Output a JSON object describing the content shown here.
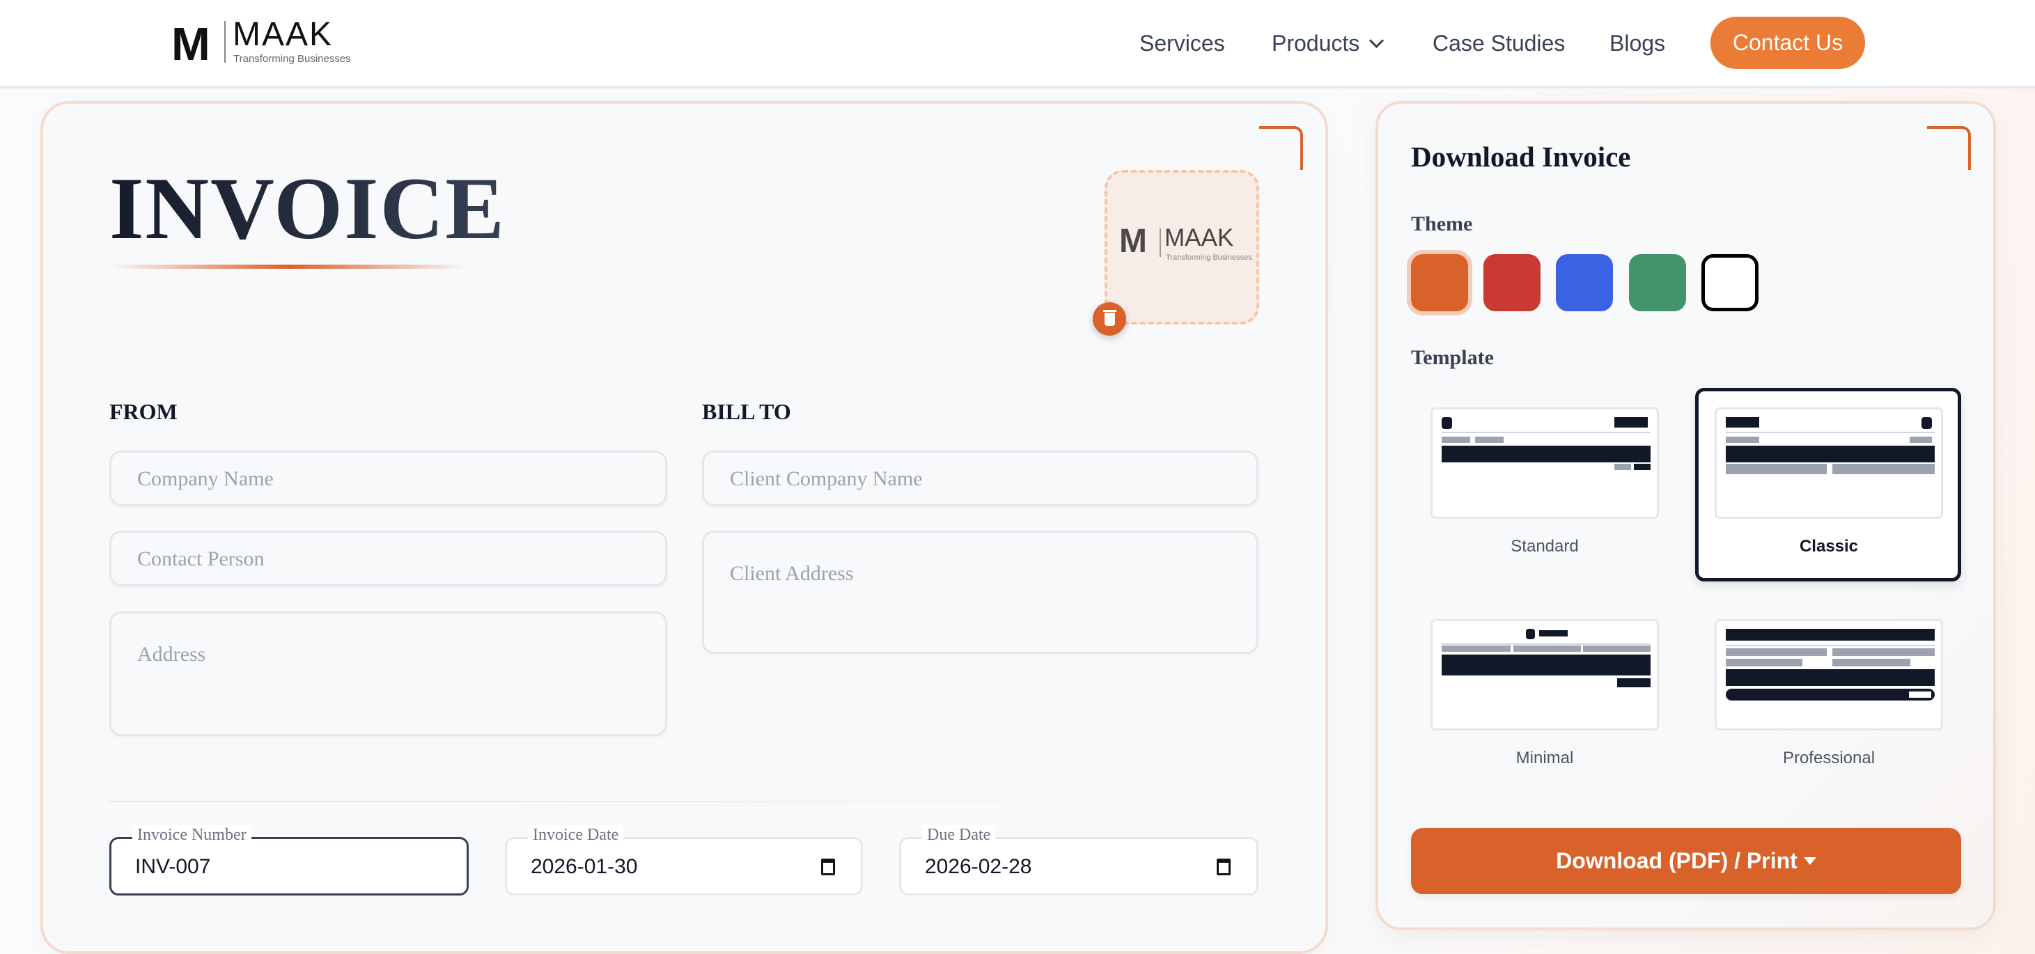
{
  "header": {
    "logo": {
      "mark": "M",
      "name": "MAAK",
      "tagline": "Transforming Businesses"
    },
    "nav": [
      {
        "label": "Services"
      },
      {
        "label": "Products",
        "has_dropdown": true
      },
      {
        "label": "Case Studies"
      },
      {
        "label": "Blogs"
      }
    ],
    "contact_label": "Contact Us",
    "accent": "#ea7c35"
  },
  "invoice": {
    "title": "INVOICE",
    "uploaded_logo": {
      "mark": "M",
      "name": "MAAK",
      "tagline": "Transforming Businesses"
    },
    "delete_icon": "trash-icon",
    "from": {
      "label": "FROM",
      "company_placeholder": "Company Name",
      "contact_placeholder": "Contact Person",
      "address_placeholder": "Address"
    },
    "bill_to": {
      "label": "BILL TO",
      "company_placeholder": "Client Company Name",
      "address_placeholder": "Client Address"
    },
    "meta": {
      "number_label": "Invoice Number",
      "number_value": "INV-007",
      "date_label": "Invoice Date",
      "date_value": "2026-01-30",
      "due_label": "Due Date",
      "due_value": "2026-02-28"
    }
  },
  "download_panel": {
    "title": "Download Invoice",
    "theme_label": "Theme",
    "themes": [
      {
        "color": "#d9622b",
        "selected": true
      },
      {
        "color": "#c93a32",
        "selected": false
      },
      {
        "color": "#3a63e3",
        "selected": false
      },
      {
        "color": "#43936b",
        "selected": false
      },
      {
        "color": "#ffffff",
        "selected": false
      }
    ],
    "template_label": "Template",
    "templates": [
      {
        "name": "Standard",
        "selected": false
      },
      {
        "name": "Classic",
        "selected": true
      },
      {
        "name": "Minimal",
        "selected": false
      },
      {
        "name": "Professional",
        "selected": false
      }
    ],
    "download_label": "Download (PDF) / Print",
    "download_color": "#d9622b"
  }
}
